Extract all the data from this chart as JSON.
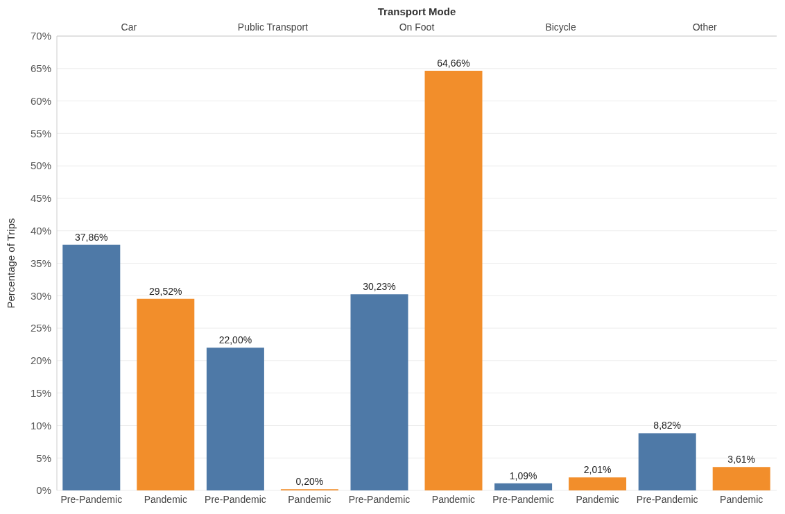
{
  "chart_data": {
    "type": "bar",
    "title": "Transport Mode",
    "ylabel": "Percentage of Trips",
    "categories": [
      "Car",
      "Public Transport",
      "On Foot",
      "Bicycle",
      "Other"
    ],
    "series": [
      {
        "name": "Pre-Pandemic",
        "color": "#4e79a7",
        "values": [
          37.86,
          22.0,
          30.23,
          1.09,
          8.82
        ],
        "value_labels": [
          "37,86%",
          "22,00%",
          "30,23%",
          "1,09%",
          "8,82%"
        ]
      },
      {
        "name": "Pandemic",
        "color": "#f28e2b",
        "values": [
          29.52,
          0.2,
          64.66,
          2.01,
          3.61
        ],
        "value_labels": [
          "29,52%",
          "0,20%",
          "64,66%",
          "2,01%",
          "3,61%"
        ]
      }
    ],
    "ylim": [
      0,
      70
    ],
    "yticks": [
      {
        "value": 0,
        "label": "0%"
      },
      {
        "value": 5,
        "label": "5%"
      },
      {
        "value": 10,
        "label": "10%"
      },
      {
        "value": 15,
        "label": "15%"
      },
      {
        "value": 20,
        "label": "20%"
      },
      {
        "value": 25,
        "label": "25%"
      },
      {
        "value": 30,
        "label": "30%"
      },
      {
        "value": 35,
        "label": "35%"
      },
      {
        "value": 40,
        "label": "40%"
      },
      {
        "value": 45,
        "label": "45%"
      },
      {
        "value": 50,
        "label": "50%"
      },
      {
        "value": 55,
        "label": "55%"
      },
      {
        "value": 60,
        "label": "60%"
      },
      {
        "value": 65,
        "label": "65%"
      },
      {
        "value": 70,
        "label": "70%"
      }
    ],
    "grid": "y",
    "legend": false
  }
}
